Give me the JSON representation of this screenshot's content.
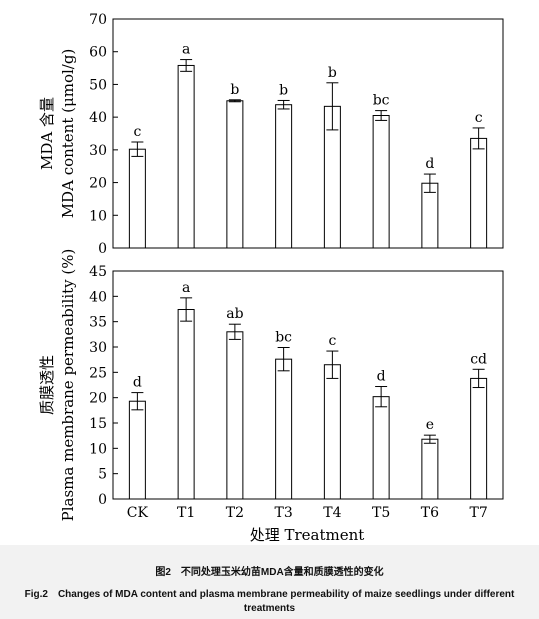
{
  "chart_data": [
    {
      "type": "bar",
      "categories": [
        "CK",
        "T1",
        "T2",
        "T3",
        "T4",
        "T5",
        "T6",
        "T7"
      ],
      "values": [
        30.2,
        55.8,
        45.0,
        43.8,
        43.3,
        40.5,
        19.8,
        33.5
      ],
      "errors": [
        2.2,
        1.8,
        0.3,
        1.3,
        7.2,
        1.5,
        2.8,
        3.2
      ],
      "letters": [
        "c",
        "a",
        "b",
        "b",
        "b",
        "bc",
        "d",
        "c"
      ],
      "ylabel_zh": "MDA 含量",
      "ylabel": "MDA content (μmol/g)",
      "ylim": [
        0,
        70
      ],
      "yticks": [
        0,
        10,
        20,
        30,
        40,
        50,
        60,
        70
      ],
      "bar_fill": "#ffffff",
      "grid": false
    },
    {
      "type": "bar",
      "categories": [
        "CK",
        "T1",
        "T2",
        "T3",
        "T4",
        "T5",
        "T6",
        "T7"
      ],
      "values": [
        19.3,
        37.4,
        33.0,
        27.6,
        26.5,
        20.2,
        11.8,
        23.8
      ],
      "errors": [
        1.7,
        2.3,
        1.5,
        2.3,
        2.7,
        2.0,
        0.8,
        1.8
      ],
      "letters": [
        "d",
        "a",
        "ab",
        "bc",
        "c",
        "d",
        "e",
        "cd"
      ],
      "ylabel_zh": "质膜透性",
      "ylabel": "Plasma membrane permeability (%)",
      "ylim": [
        0,
        45
      ],
      "yticks": [
        0,
        5,
        10,
        15,
        20,
        25,
        30,
        35,
        40,
        45
      ],
      "bar_fill": "#ffffff",
      "grid": false
    }
  ],
  "xlabel": "处理 Treatment",
  "caption": {
    "zh": "图2　不同处理玉米幼苗MDA含量和质膜透性的变化",
    "en": "Fig.2　Changes of MDA content and plasma membrane permeability of maize seedlings under different treatments"
  }
}
